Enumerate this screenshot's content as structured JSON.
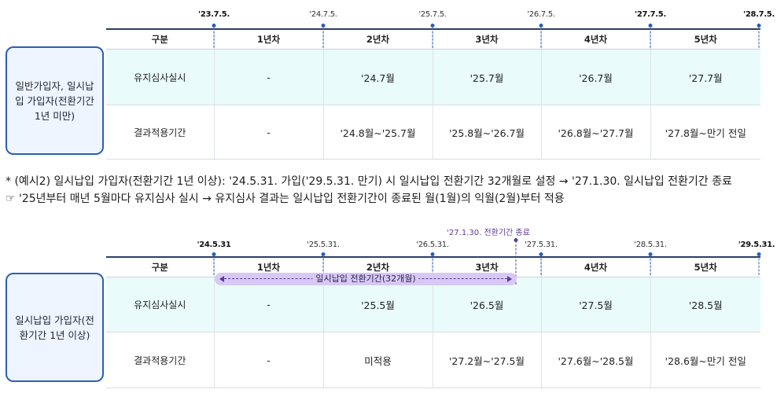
{
  "section1": {
    "dates": [
      {
        "label": "'23.7.5.",
        "bold": true
      },
      {
        "label": "'24.7.5.",
        "bold": false
      },
      {
        "label": "'25.7.5.",
        "bold": false
      },
      {
        "label": "'26.7.5.",
        "bold": false
      },
      {
        "label": "'27.7.5.",
        "bold": true
      },
      {
        "label": "'28.7.5.",
        "bold": true
      }
    ],
    "side_label": "일반가입자, 일시납입 가입자(전환기간 1년 미만)",
    "headers": [
      "구분",
      "1년차",
      "2년차",
      "3년차",
      "4년차",
      "5년차"
    ],
    "rows": [
      [
        "유지심사실시",
        "-",
        "'24.7월",
        "'25.7월",
        "'26.7월",
        "'27.7월"
      ],
      [
        "결과적용기간",
        "-",
        "'24.8월~'25.7월",
        "'25.8월~'26.7월",
        "'26.8월~'27.7월",
        "'27.8월~만기 전일"
      ]
    ]
  },
  "notes": {
    "line1": "* (예시2) 일시납입 가입자(전환기간 1년 이상): '24.5.31. 가입('29.5.31. 만기) 시 일시납입 전환기간 32개월로 설정 → '27.1.30. 일시납입 전환기간 종료",
    "line2": "☞ '25년부터 매년 5월마다 유지심사 실시 → 유지심사 결과는 일시납입 전환기간이 종료된 월(1월)의 익월(2월)부터 적용"
  },
  "section2": {
    "dates": [
      {
        "label": "'24.5.31",
        "bold": true
      },
      {
        "label": "'25.5.31.",
        "bold": false
      },
      {
        "label": "'26.5.31.",
        "bold": false
      },
      {
        "label": "'27.5.31.",
        "bold": false
      },
      {
        "label": "'28.5.31.",
        "bold": false
      },
      {
        "label": "'29.5.31.",
        "bold": true
      }
    ],
    "end_marker_label": "'27.1.30. 전환기간 종료",
    "period_label": "일시납입 전환기간(32개월)",
    "side_label": "일시납입 가입자(전환기간 1년 이상)",
    "headers": [
      "구분",
      "1년차",
      "2년차",
      "3년차",
      "4년차",
      "5년차"
    ],
    "rows": [
      [
        "유지심사실시",
        "-",
        "'25.5월",
        "'26.5월",
        "'27.5월",
        "'28.5월"
      ],
      [
        "결과적용기간",
        "-",
        "미적용",
        "'27.2월~'27.5월",
        "'27.6월~'28.5월",
        "'28.6월~만기 전일"
      ]
    ]
  },
  "colors": {
    "accent_blue": "#2c5fb6",
    "row_highlight": "#e9fbfa",
    "period_purple": "#d7c9f3",
    "purple_text": "#5b3a9b"
  }
}
